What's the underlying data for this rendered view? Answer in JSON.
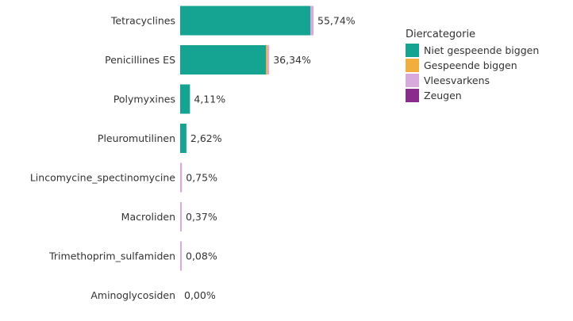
{
  "chart_data": {
    "type": "bar",
    "orientation": "horizontal",
    "stacked": true,
    "categories": [
      "Tetracyclines",
      "Penicillines ES",
      "Polymyxines",
      "Pleuromutilinen",
      "Lincomycine_spectinomycine",
      "Macroliden",
      "Trimethoprim_sulfamiden",
      "Aminoglycosiden"
    ],
    "total_labels": [
      "55,74%",
      "36,34%",
      "4,11%",
      "2,62%",
      "0,75%",
      "0,37%",
      "0,08%",
      "0,00%"
    ],
    "series": [
      {
        "name": "Niet gespeende biggen",
        "color": "#15A392",
        "values": [
          54.5,
          35.9,
          4.11,
          2.62,
          0.0,
          0.0,
          0.0,
          0.0
        ]
      },
      {
        "name": "Gespeende biggen",
        "color": "#F2AE3C",
        "values": [
          0.0,
          0.3,
          0.0,
          0.0,
          0.0,
          0.0,
          0.0,
          0.0
        ]
      },
      {
        "name": "Vleesvarkens",
        "color": "#D9A9DE",
        "values": [
          1.24,
          0.14,
          0.0,
          0.0,
          0.75,
          0.37,
          0.08,
          0.0
        ]
      },
      {
        "name": "Zeugen",
        "color": "#8A2C8C",
        "values": [
          0.0,
          0.0,
          0.0,
          0.0,
          0.0,
          0.0,
          0.0,
          0.0
        ]
      }
    ],
    "legend": {
      "title": "Diercategorie",
      "position": "top-right"
    },
    "xlim": [
      0,
      55.74
    ],
    "title": "",
    "xlabel": "",
    "ylabel": ""
  }
}
